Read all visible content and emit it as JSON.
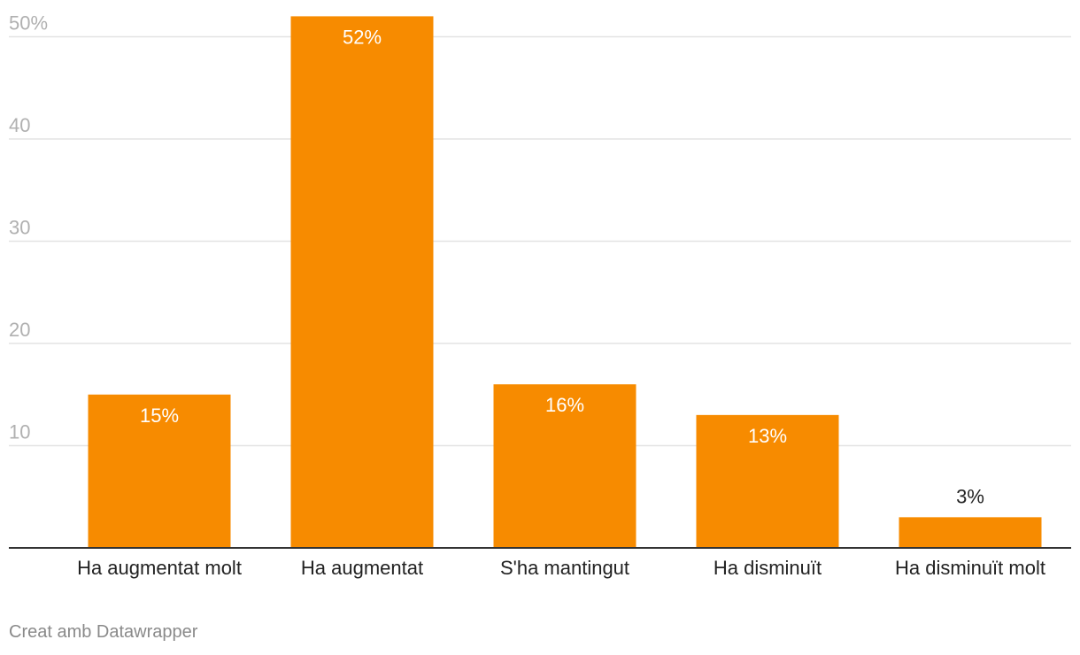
{
  "chart_data": {
    "type": "bar",
    "categories": [
      "Ha augmentat molt",
      "Ha augmentat",
      "S'ha mantingut",
      "Ha disminuït",
      "Ha disminuït molt"
    ],
    "values": [
      15,
      52,
      16,
      13,
      3
    ],
    "value_labels": [
      "15%",
      "52%",
      "16%",
      "13%",
      "3%"
    ],
    "y_ticks": [
      10,
      20,
      30,
      40,
      50
    ],
    "y_tick_labels": [
      "10",
      "20",
      "30",
      "40",
      "50%"
    ],
    "ylim": [
      0,
      53
    ],
    "grid": true,
    "bar_color": "#f78b00",
    "inside_label_color": "#ffffff",
    "outside_label_color": "#222222",
    "tick_label_color": "#b0b0b0",
    "gridline_color": "#e3e3e3"
  },
  "footer": {
    "credit": "Creat amb Datawrapper"
  }
}
